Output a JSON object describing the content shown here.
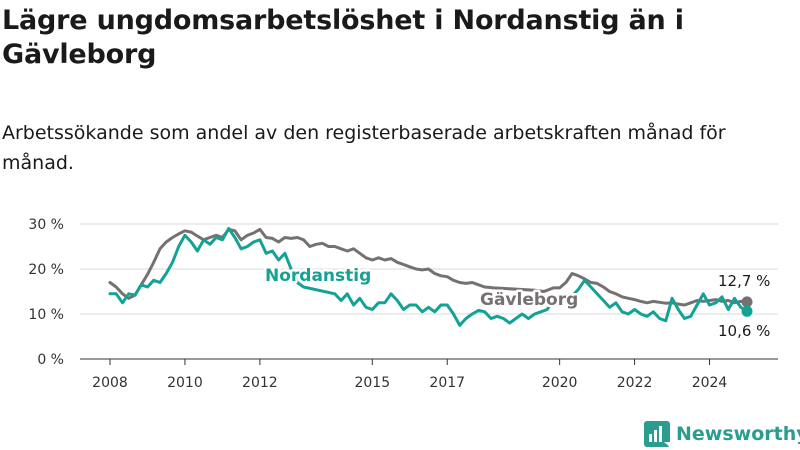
{
  "title": "Lägre ungdomsarbetslöshet i Nordanstig än i Gävleborg",
  "subtitle": "Arbetssökande som andel av den registerbaserade arbetskraften månad för månad.",
  "brand": {
    "name": "Newsworthy",
    "icon": "newsworthy-logo-icon",
    "color": "#2a9d8f"
  },
  "chart_data": {
    "type": "line",
    "x_range": [
      "2008-01",
      "2025-01"
    ],
    "x_ticks": [
      {
        "label": "2008",
        "date": "2008-01"
      },
      {
        "label": "2010",
        "date": "2010-01"
      },
      {
        "label": "2012",
        "date": "2012-01"
      },
      {
        "label": "2015",
        "date": "2015-01"
      },
      {
        "label": "2017",
        "date": "2017-01"
      },
      {
        "label": "2020",
        "date": "2020-01"
      },
      {
        "label": "2022",
        "date": "2022-01"
      },
      {
        "label": "2024",
        "date": "2024-01"
      }
    ],
    "ylim": [
      0,
      30
    ],
    "y_ticks": [
      {
        "label": "0 %",
        "value": 0
      },
      {
        "label": "10 %",
        "value": 10
      },
      {
        "label": "20 %",
        "value": 20
      },
      {
        "label": "30 %",
        "value": 30
      }
    ],
    "grid": true,
    "series": [
      {
        "name": "Gävleborg",
        "color": "#767171",
        "end_label": "12,7 %",
        "points": [
          [
            "2008-01",
            17.0
          ],
          [
            "2008-03",
            16.0
          ],
          [
            "2008-05",
            14.5
          ],
          [
            "2008-07",
            13.5
          ],
          [
            "2008-09",
            14.2
          ],
          [
            "2008-11",
            16.5
          ],
          [
            "2009-01",
            18.8
          ],
          [
            "2009-03",
            21.5
          ],
          [
            "2009-05",
            24.5
          ],
          [
            "2009-07",
            26.0
          ],
          [
            "2009-09",
            27.0
          ],
          [
            "2009-11",
            27.8
          ],
          [
            "2010-01",
            28.5
          ],
          [
            "2010-03",
            28.2
          ],
          [
            "2010-05",
            27.3
          ],
          [
            "2010-07",
            26.5
          ],
          [
            "2010-09",
            27.0
          ],
          [
            "2010-11",
            27.5
          ],
          [
            "2011-01",
            27.0
          ],
          [
            "2011-03",
            28.8
          ],
          [
            "2011-05",
            28.5
          ],
          [
            "2011-07",
            26.5
          ],
          [
            "2011-09",
            27.5
          ],
          [
            "2011-11",
            28.0
          ],
          [
            "2012-01",
            28.8
          ],
          [
            "2012-03",
            27.0
          ],
          [
            "2012-05",
            26.8
          ],
          [
            "2012-07",
            26.0
          ],
          [
            "2012-09",
            27.0
          ],
          [
            "2012-11",
            26.8
          ],
          [
            "2013-01",
            27.0
          ],
          [
            "2013-03",
            26.5
          ],
          [
            "2013-05",
            25.0
          ],
          [
            "2013-07",
            25.5
          ],
          [
            "2013-09",
            25.7
          ],
          [
            "2013-11",
            25.0
          ],
          [
            "2014-01",
            25.0
          ],
          [
            "2014-03",
            24.5
          ],
          [
            "2014-05",
            24.0
          ],
          [
            "2014-07",
            24.5
          ],
          [
            "2014-09",
            23.5
          ],
          [
            "2014-11",
            22.5
          ],
          [
            "2015-01",
            22.0
          ],
          [
            "2015-03",
            22.5
          ],
          [
            "2015-05",
            22.0
          ],
          [
            "2015-07",
            22.3
          ],
          [
            "2015-09",
            21.5
          ],
          [
            "2015-11",
            21.0
          ],
          [
            "2016-01",
            20.5
          ],
          [
            "2016-03",
            20.0
          ],
          [
            "2016-05",
            19.8
          ],
          [
            "2016-07",
            20.0
          ],
          [
            "2016-09",
            19.0
          ],
          [
            "2016-11",
            18.5
          ],
          [
            "2017-01",
            18.3
          ],
          [
            "2017-03",
            17.5
          ],
          [
            "2017-05",
            17.0
          ],
          [
            "2017-07",
            16.8
          ],
          [
            "2017-09",
            17.0
          ],
          [
            "2017-11",
            16.5
          ],
          [
            "2018-01",
            16.0
          ],
          [
            "2018-04",
            15.8
          ],
          [
            "2019-05",
            15.3
          ],
          [
            "2019-08",
            15.0
          ],
          [
            "2019-11",
            15.8
          ],
          [
            "2020-01",
            15.8
          ],
          [
            "2020-03",
            17.0
          ],
          [
            "2020-05",
            19.0
          ],
          [
            "2020-07",
            18.5
          ],
          [
            "2020-09",
            17.8
          ],
          [
            "2020-11",
            17.0
          ],
          [
            "2021-01",
            16.8
          ],
          [
            "2021-03",
            16.0
          ],
          [
            "2021-05",
            15.0
          ],
          [
            "2021-07",
            14.5
          ],
          [
            "2021-09",
            13.8
          ],
          [
            "2021-11",
            13.5
          ],
          [
            "2022-01",
            13.2
          ],
          [
            "2022-03",
            12.8
          ],
          [
            "2022-05",
            12.5
          ],
          [
            "2022-07",
            12.8
          ],
          [
            "2022-09",
            12.6
          ],
          [
            "2022-11",
            12.4
          ],
          [
            "2023-01",
            12.5
          ],
          [
            "2023-03",
            12.2
          ],
          [
            "2023-05",
            12.0
          ],
          [
            "2023-07",
            12.5
          ],
          [
            "2023-09",
            13.0
          ],
          [
            "2023-11",
            12.8
          ],
          [
            "2024-01",
            13.0
          ],
          [
            "2024-03",
            13.2
          ],
          [
            "2024-05",
            12.8
          ],
          [
            "2024-07",
            13.0
          ],
          [
            "2024-09",
            12.5
          ],
          [
            "2024-11",
            12.8
          ],
          [
            "2025-01",
            12.7
          ]
        ]
      },
      {
        "name": "Nordanstig",
        "color": "#13a295",
        "end_label": "10,6 %",
        "points": [
          [
            "2008-01",
            14.5
          ],
          [
            "2008-03",
            14.5
          ],
          [
            "2008-05",
            12.5
          ],
          [
            "2008-07",
            14.5
          ],
          [
            "2008-09",
            14.2
          ],
          [
            "2008-11",
            16.5
          ],
          [
            "2009-01",
            16.0
          ],
          [
            "2009-03",
            17.5
          ],
          [
            "2009-05",
            17.0
          ],
          [
            "2009-07",
            19.0
          ],
          [
            "2009-09",
            21.5
          ],
          [
            "2009-11",
            25.0
          ],
          [
            "2010-01",
            27.5
          ],
          [
            "2010-03",
            26.0
          ],
          [
            "2010-05",
            24.0
          ],
          [
            "2010-07",
            26.5
          ],
          [
            "2010-09",
            25.5
          ],
          [
            "2010-11",
            27.0
          ],
          [
            "2011-01",
            26.5
          ],
          [
            "2011-03",
            29.0
          ],
          [
            "2011-05",
            27.0
          ],
          [
            "2011-07",
            24.5
          ],
          [
            "2011-09",
            25.0
          ],
          [
            "2011-11",
            26.0
          ],
          [
            "2012-01",
            26.5
          ],
          [
            "2012-03",
            23.5
          ],
          [
            "2012-05",
            24.0
          ],
          [
            "2012-07",
            22.0
          ],
          [
            "2012-09",
            23.5
          ],
          [
            "2012-11",
            20.0
          ],
          [
            "2013-01",
            17.0
          ],
          [
            "2013-03",
            16.0
          ],
          [
            "2014-01",
            14.5
          ],
          [
            "2014-03",
            13.0
          ],
          [
            "2014-05",
            14.5
          ],
          [
            "2014-07",
            12.0
          ],
          [
            "2014-09",
            13.5
          ],
          [
            "2014-11",
            11.5
          ],
          [
            "2015-01",
            11.0
          ],
          [
            "2015-03",
            12.5
          ],
          [
            "2015-05",
            12.5
          ],
          [
            "2015-07",
            14.5
          ],
          [
            "2015-09",
            13.0
          ],
          [
            "2015-11",
            11.0
          ],
          [
            "2016-01",
            12.0
          ],
          [
            "2016-03",
            12.0
          ],
          [
            "2016-05",
            10.5
          ],
          [
            "2016-07",
            11.5
          ],
          [
            "2016-09",
            10.5
          ],
          [
            "2016-11",
            12.0
          ],
          [
            "2017-01",
            12.0
          ],
          [
            "2017-03",
            10.0
          ],
          [
            "2017-05",
            7.5
          ],
          [
            "2017-07",
            9.0
          ],
          [
            "2017-09",
            10.0
          ],
          [
            "2017-11",
            10.8
          ],
          [
            "2018-01",
            10.5
          ],
          [
            "2018-03",
            9.0
          ],
          [
            "2018-05",
            9.5
          ],
          [
            "2018-07",
            9.0
          ],
          [
            "2018-09",
            8.0
          ],
          [
            "2018-11",
            9.0
          ],
          [
            "2019-01",
            10.0
          ],
          [
            "2019-03",
            9.0
          ],
          [
            "2019-05",
            10.0
          ],
          [
            "2019-07",
            10.5
          ],
          [
            "2019-09",
            11.0
          ],
          [
            "2019-11",
            13.0
          ],
          [
            "2020-01",
            12.5
          ],
          [
            "2020-03",
            13.5
          ],
          [
            "2020-05",
            14.0
          ],
          [
            "2020-07",
            15.5
          ],
          [
            "2020-09",
            17.5
          ],
          [
            "2020-11",
            16.0
          ],
          [
            "2021-01",
            14.5
          ],
          [
            "2021-03",
            13.0
          ],
          [
            "2021-05",
            11.5
          ],
          [
            "2021-07",
            12.5
          ],
          [
            "2021-09",
            10.5
          ],
          [
            "2021-11",
            10.0
          ],
          [
            "2022-01",
            11.0
          ],
          [
            "2022-03",
            10.0
          ],
          [
            "2022-05",
            9.5
          ],
          [
            "2022-07",
            10.5
          ],
          [
            "2022-09",
            9.0
          ],
          [
            "2022-11",
            8.5
          ],
          [
            "2023-01",
            13.5
          ],
          [
            "2023-03",
            11.0
          ],
          [
            "2023-05",
            9.0
          ],
          [
            "2023-07",
            9.5
          ],
          [
            "2023-09",
            12.0
          ],
          [
            "2023-11",
            14.5
          ],
          [
            "2024-01",
            12.0
          ],
          [
            "2024-03",
            12.5
          ],
          [
            "2024-05",
            13.8
          ],
          [
            "2024-07",
            11.0
          ],
          [
            "2024-09",
            13.5
          ],
          [
            "2024-11",
            11.5
          ],
          [
            "2025-01",
            10.6
          ]
        ]
      }
    ]
  }
}
